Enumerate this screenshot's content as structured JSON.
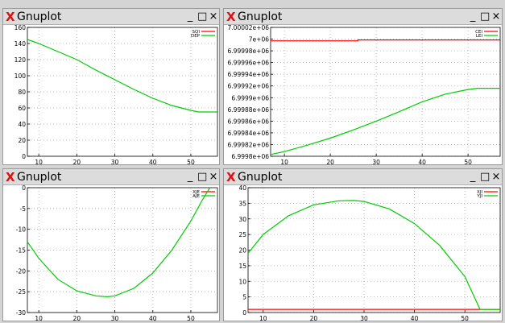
{
  "windows": [
    {
      "title": "Gnuplot",
      "app_glyph": "X",
      "controls": {
        "minimize": "_",
        "maximize": "□",
        "close": "×"
      },
      "chart_data": {
        "type": "line",
        "xlim": [
          7,
          57
        ],
        "ylim": [
          0,
          160
        ],
        "xticks": [
          "10",
          "20",
          "30",
          "40",
          "50"
        ],
        "yticks": [
          "0",
          "20",
          "40",
          "60",
          "80",
          "100",
          "120",
          "140",
          "160"
        ],
        "grid": true,
        "legend_position": "top-right",
        "series": [
          {
            "name": "SQI",
            "color": "#ff0000",
            "x": [],
            "y": []
          },
          {
            "name": "DEP",
            "color": "#00cc00",
            "x": [
              7,
              10,
              15,
              20,
              25,
              30,
              35,
              40,
              45,
              50,
              52,
              57
            ],
            "y": [
              145,
              140,
              130,
              120,
              107,
              95,
              83,
              72,
              63,
              57,
              55,
              55
            ]
          }
        ]
      }
    },
    {
      "title": "Gnuplot",
      "app_glyph": "X",
      "controls": {
        "minimize": "_",
        "maximize": "□",
        "close": "×"
      },
      "chart_data": {
        "type": "line",
        "xlim": [
          7,
          57
        ],
        "ylim": [
          6999800.0,
          7000020.0
        ],
        "xticks": [
          "10",
          "20",
          "30",
          "40",
          "50"
        ],
        "yticks": [
          "6.9998e+06",
          "6.99982e+06",
          "6.99984e+06",
          "6.99986e+06",
          "6.99988e+06",
          "6.9999e+06",
          "6.99992e+06",
          "6.99994e+06",
          "6.99996e+06",
          "6.99998e+06",
          "7e+06",
          "7.00002e+06"
        ],
        "grid": true,
        "legend_position": "top-right",
        "series": [
          {
            "name": "CEI",
            "color": "#ff0000",
            "x": [
              7,
              26,
              26,
              57
            ],
            "y": [
              6999997.0,
              6999997.0,
              6999998.5,
              6999998.5
            ]
          },
          {
            "name": "LEI",
            "color": "#00cc00",
            "x": [
              7,
              10,
              15,
              20,
              25,
              30,
              35,
              40,
              45,
              50,
              52,
              57
            ],
            "y": [
              6999803.0,
              6999808.0,
              6999819.0,
              6999831.0,
              6999845.0,
              6999860.0,
              6999876.0,
              6999893.0,
              6999906.0,
              6999914.0,
              6999916.0,
              6999916.0
            ]
          }
        ]
      }
    },
    {
      "title": "Gnuplot",
      "app_glyph": "X",
      "controls": {
        "minimize": "_",
        "maximize": "□",
        "close": "×"
      },
      "chart_data": {
        "type": "line",
        "xlim": [
          7,
          57
        ],
        "ylim": [
          -30,
          0
        ],
        "xticks": [
          "10",
          "20",
          "30",
          "40",
          "50"
        ],
        "yticks": [
          "-30",
          "-25",
          "-20",
          "-15",
          "-10",
          "-5",
          "0"
        ],
        "grid": true,
        "legend_position": "top-right",
        "series": [
          {
            "name": "XJE",
            "color": "#ff0000",
            "x": [],
            "y": []
          },
          {
            "name": "AJE",
            "color": "#00cc00",
            "x": [
              7,
              10,
              15,
              20,
              25,
              28,
              30,
              35,
              40,
              45,
              50,
              53,
              55
            ],
            "y": [
              -13,
              -17,
              -22,
              -24.8,
              -26,
              -26.2,
              -26,
              -24.2,
              -20.5,
              -15,
              -8,
              -3,
              0
            ]
          }
        ]
      }
    },
    {
      "title": "Gnuplot",
      "app_glyph": "X",
      "controls": {
        "minimize": "_",
        "maximize": "□",
        "close": "×"
      },
      "chart_data": {
        "type": "line",
        "xlim": [
          7,
          57
        ],
        "ylim": [
          0,
          40
        ],
        "xticks": [
          "10",
          "20",
          "30",
          "40",
          "50"
        ],
        "yticks": [
          "0",
          "5",
          "10",
          "15",
          "20",
          "25",
          "30",
          "35",
          "40"
        ],
        "grid": true,
        "legend_position": "top-right",
        "series": [
          {
            "name": "XJI",
            "color": "#ff0000",
            "x": [
              7,
              57
            ],
            "y": [
              1,
              1
            ]
          },
          {
            "name": "YJI",
            "color": "#00cc00",
            "x": [
              7,
              10,
              15,
              20,
              25,
              28,
              30,
              35,
              40,
              45,
              50,
              53,
              57
            ],
            "y": [
              19,
              25,
              31,
              34.5,
              35.8,
              35.9,
              35.6,
              33.2,
              28.5,
              21.5,
              11.5,
              1,
              1
            ]
          }
        ]
      }
    }
  ]
}
